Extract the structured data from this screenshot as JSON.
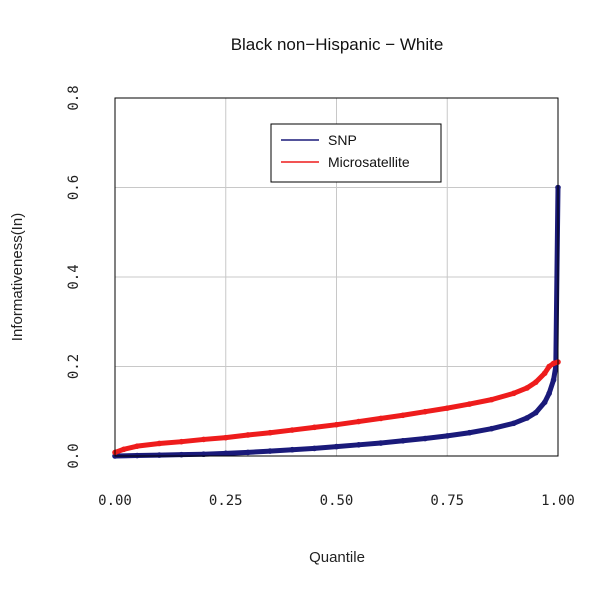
{
  "chart_data": {
    "type": "line",
    "title": "Black non−Hispanic − White",
    "xlabel": "Quantile",
    "ylabel": "Informativeness(In)",
    "xlim": [
      0,
      1
    ],
    "ylim": [
      0,
      0.8
    ],
    "x_ticks": [
      "0.00",
      "0.25",
      "0.50",
      "0.75",
      "1.00"
    ],
    "y_ticks": [
      "0.0",
      "0.2",
      "0.4",
      "0.6",
      "0.8"
    ],
    "grid": true,
    "legend_position": "top-center",
    "series": [
      {
        "name": "SNP",
        "color": "#1a1a7a",
        "x": [
          0.0,
          0.05,
          0.1,
          0.15,
          0.2,
          0.25,
          0.3,
          0.35,
          0.4,
          0.45,
          0.5,
          0.55,
          0.6,
          0.65,
          0.7,
          0.75,
          0.8,
          0.85,
          0.9,
          0.93,
          0.95,
          0.97,
          0.98,
          0.99,
          0.995,
          1.0
        ],
        "y": [
          0.0,
          0.001,
          0.002,
          0.003,
          0.004,
          0.006,
          0.008,
          0.011,
          0.014,
          0.017,
          0.021,
          0.025,
          0.029,
          0.034,
          0.039,
          0.045,
          0.052,
          0.061,
          0.073,
          0.085,
          0.097,
          0.12,
          0.14,
          0.17,
          0.2,
          0.6
        ]
      },
      {
        "name": "Microsatellite",
        "color": "#ee1c1c",
        "x": [
          0.0,
          0.02,
          0.05,
          0.1,
          0.15,
          0.2,
          0.25,
          0.3,
          0.35,
          0.4,
          0.45,
          0.5,
          0.55,
          0.6,
          0.65,
          0.7,
          0.75,
          0.8,
          0.85,
          0.9,
          0.93,
          0.95,
          0.97,
          0.98,
          0.99,
          1.0
        ],
        "y": [
          0.008,
          0.015,
          0.022,
          0.028,
          0.032,
          0.037,
          0.041,
          0.047,
          0.052,
          0.058,
          0.064,
          0.07,
          0.077,
          0.084,
          0.091,
          0.099,
          0.107,
          0.116,
          0.126,
          0.14,
          0.152,
          0.165,
          0.185,
          0.2,
          0.207,
          0.21
        ]
      }
    ]
  }
}
